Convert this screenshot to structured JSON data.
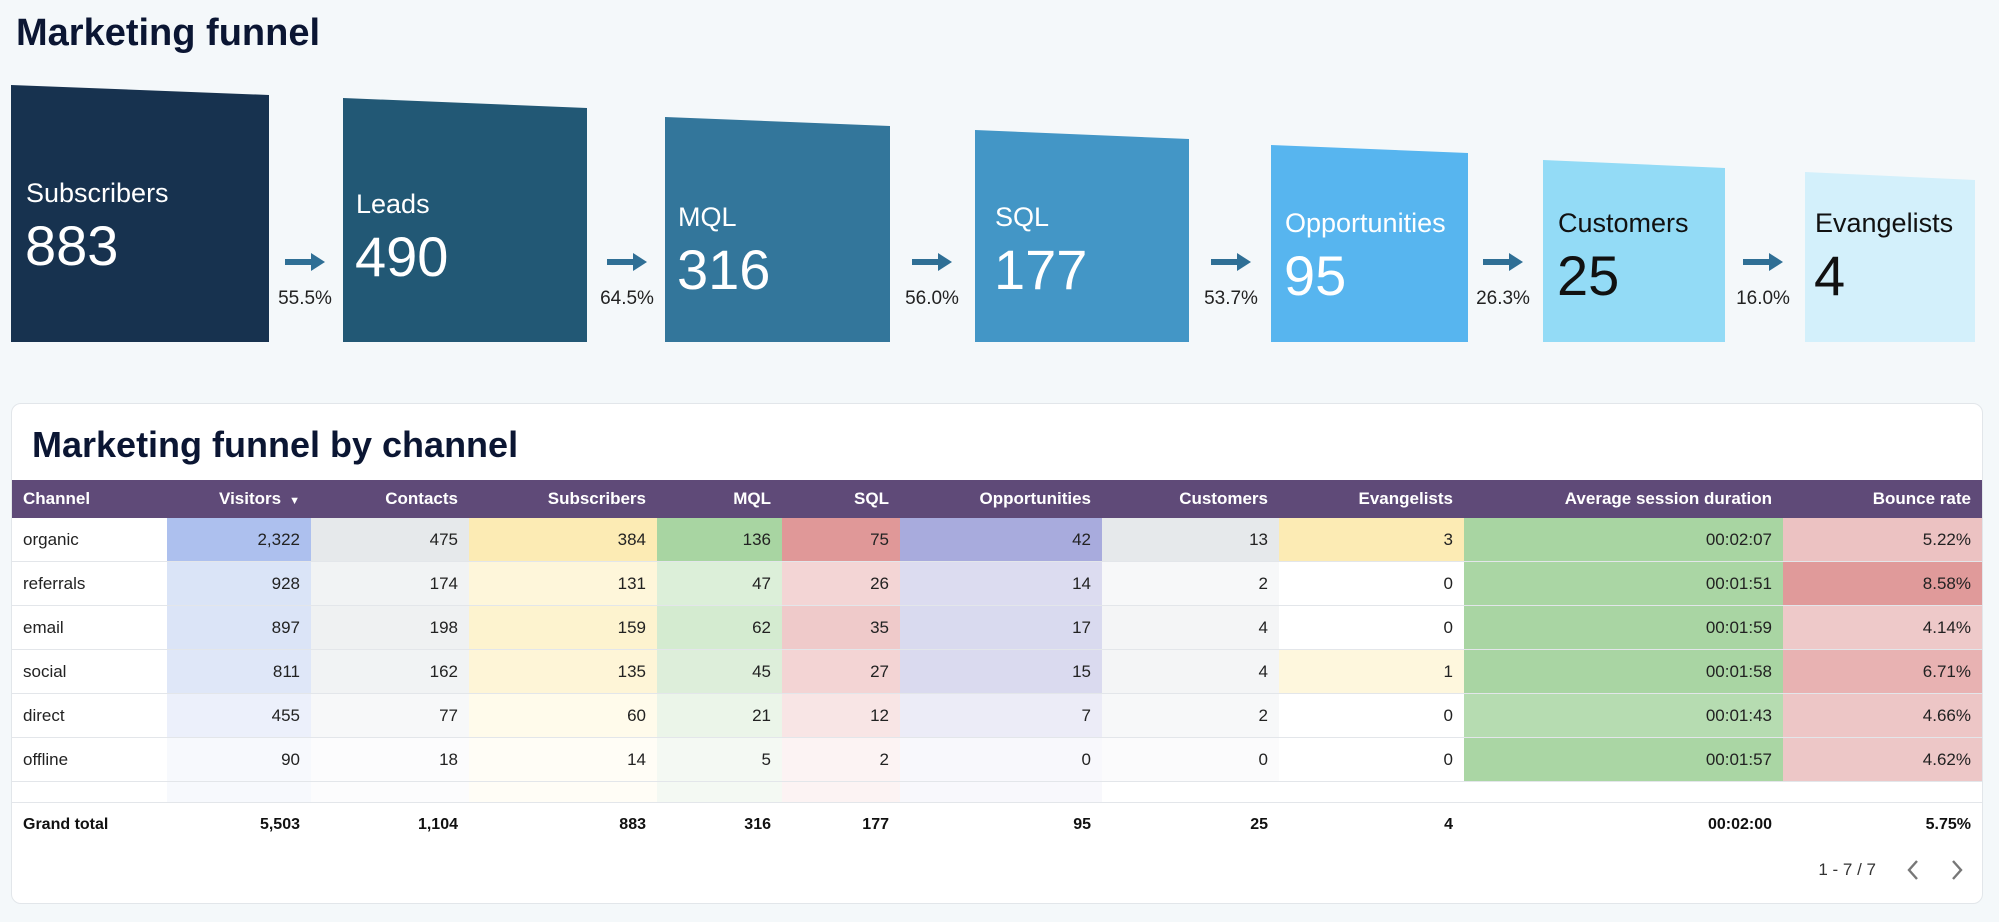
{
  "page": {
    "title": "Marketing funnel"
  },
  "funnel": {
    "stages": [
      {
        "label": "Subscribers",
        "value": "883",
        "color": "#17324f",
        "text_color": "#ffffff"
      },
      {
        "label": "Leads",
        "value": "490",
        "color": "#225875",
        "text_color": "#ffffff"
      },
      {
        "label": "MQL",
        "value": "316",
        "color": "#33769b",
        "text_color": "#ffffff"
      },
      {
        "label": "SQL",
        "value": "177",
        "color": "#4396c6",
        "text_color": "#ffffff"
      },
      {
        "label": "Opportunities",
        "value": "95",
        "color": "#57b5ef",
        "text_color": "#ffffff"
      },
      {
        "label": "Customers",
        "value": "25",
        "color": "#93dbf6",
        "text_color": "#111111"
      },
      {
        "label": "Evangelists",
        "value": "4",
        "color": "#d3f0fb",
        "text_color": "#111111"
      }
    ],
    "rates": [
      "55.5%",
      "64.5%",
      "56.0%",
      "53.7%",
      "26.3%",
      "16.0%"
    ],
    "arrow_color": "#2f6f95"
  },
  "table": {
    "title": "Marketing funnel by channel",
    "header_color": "#5f4a78",
    "columns": [
      "Channel",
      "Visitors",
      "Contacts",
      "Subscribers",
      "MQL",
      "SQL",
      "Opportunities",
      "Customers",
      "Evangelists",
      "Average session duration",
      "Bounce rate"
    ],
    "sorted_column": "Visitors",
    "sort_glyph": "▼",
    "rows": [
      [
        "organic",
        "2,322",
        "475",
        "384",
        "136",
        "75",
        "42",
        "13",
        "3",
        "00:02:07",
        "5.22%"
      ],
      [
        "referrals",
        "928",
        "174",
        "131",
        "47",
        "26",
        "14",
        "2",
        "0",
        "00:01:51",
        "8.58%"
      ],
      [
        "email",
        "897",
        "198",
        "159",
        "62",
        "35",
        "17",
        "4",
        "0",
        "00:01:59",
        "4.14%"
      ],
      [
        "social",
        "811",
        "162",
        "135",
        "45",
        "27",
        "15",
        "4",
        "1",
        "00:01:58",
        "6.71%"
      ],
      [
        "direct",
        "455",
        "77",
        "60",
        "21",
        "12",
        "7",
        "2",
        "0",
        "00:01:43",
        "4.66%"
      ],
      [
        "offline",
        "90",
        "18",
        "14",
        "5",
        "2",
        "0",
        "0",
        "0",
        "00:01:57",
        "4.62%"
      ]
    ],
    "cell_colors": [
      [
        null,
        "#adc0ee",
        "#e6e9eb",
        "#fcebb4",
        "#a8d5a2",
        "#e09898",
        "#a8abdd",
        "#e6e9eb",
        "#fcebb4",
        "#a8d5a2",
        "#ecc2c2"
      ],
      [
        null,
        "#dae4f7",
        "#f1f3f4",
        "#fef6da",
        "#dcefd9",
        "#f3d5d5",
        "#dcdcf0",
        "#f7f8f9",
        "#ffffff",
        "#aad6a4",
        "#e09a9a"
      ],
      [
        null,
        "#dbe4f7",
        "#eff1f2",
        "#fdf3cf",
        "#d4ebd0",
        "#efcaca",
        "#d9daef",
        "#f4f5f6",
        "#ffffff",
        "#a9d5a3",
        "#eec9c9"
      ],
      [
        null,
        "#dfe7f8",
        "#f1f3f4",
        "#fef5d7",
        "#ddeeda",
        "#f3d4d4",
        "#dadaef",
        "#f4f5f6",
        "#fef7dd",
        "#a9d5a3",
        "#e8b2b2"
      ],
      [
        null,
        "#ecf0fb",
        "#f7f8f9",
        "#fffbeb",
        "#ebf5e9",
        "#f8e5e5",
        "#ececf7",
        "#f7f8f9",
        "#ffffff",
        "#b6dcb1",
        "#edc6c6"
      ],
      [
        null,
        "#f7f9fd",
        "#fcfcfd",
        "#fffdf6",
        "#f4f9f3",
        "#fcf3f3",
        "#f8f8fc",
        "#fbfbfc",
        "#ffffff",
        "#aad6a4",
        "#edc7c7"
      ]
    ],
    "spacer_colors": [
      null,
      "#f7f9fd",
      "#fcfcfd",
      "#fffdf6",
      "#f4f9f3",
      "#fcf3f3",
      "#f8f8fc",
      "#ffffff",
      "#ffffff",
      "#ffffff",
      "#ffffff"
    ],
    "total": [
      "Grand total",
      "5,503",
      "1,104",
      "883",
      "316",
      "177",
      "95",
      "25",
      "4",
      "00:02:00",
      "5.75%"
    ]
  },
  "pager": {
    "range": "1 - 7 / 7",
    "prev_icon": "chevron-left-icon",
    "next_icon": "chevron-right-icon"
  }
}
